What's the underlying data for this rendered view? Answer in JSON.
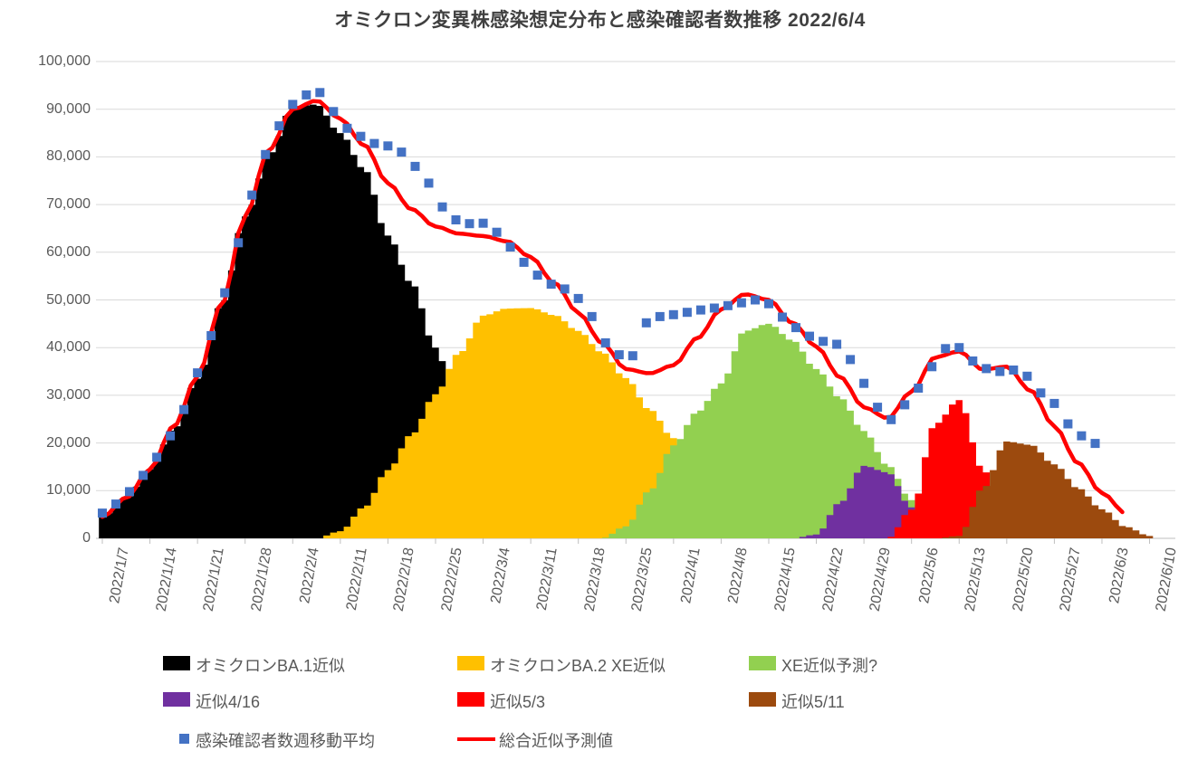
{
  "page": {
    "background": "#FFFFFF"
  },
  "chart_data": {
    "type": "combo-area-scatter-line",
    "title": "オミクロン変異株感染想定分布と感染確認者数推移  2022/6/4",
    "title_color": "#404040",
    "grid": "horizontal",
    "legend_position": "bottom",
    "y_axis": {
      "min": 0,
      "max": 100000,
      "step": 10000,
      "tick_labels": [
        "0",
        "10,000",
        "20,000",
        "30,000",
        "40,000",
        "50,000",
        "60,000",
        "70,000",
        "80,000",
        "90,000",
        "100,000"
      ]
    },
    "x_axis": {
      "start_date": "2022/1/7",
      "tick_interval_days": 7,
      "tick_labels": [
        "2022/1/7",
        "2022/1/14",
        "2022/1/21",
        "2022/1/28",
        "2022/2/4",
        "2022/2/11",
        "2022/2/18",
        "2022/2/25",
        "2022/3/4",
        "2022/3/11",
        "2022/3/18",
        "2022/3/25",
        "2022/4/1",
        "2022/4/8",
        "2022/4/15",
        "2022/4/22",
        "2022/4/29",
        "2022/5/6",
        "2022/5/13",
        "2022/5/20",
        "2022/5/27",
        "2022/6/3",
        "2022/6/10"
      ]
    },
    "area_node_step_days": 3.5,
    "area_series": [
      {
        "name": "オミクロンBA.1近似",
        "color": "#000000",
        "values": [
          4500,
          8500,
          14500,
          23000,
          33500,
          49000,
          67500,
          80500,
          90500,
          91000,
          85000,
          77500,
          63500,
          53500,
          40000,
          25000,
          13000,
          6500,
          3000,
          1200,
          0,
          0,
          0,
          0,
          0,
          0,
          0,
          0,
          0,
          0,
          0,
          0,
          0,
          0,
          0,
          0,
          0,
          0,
          0,
          0,
          0,
          0,
          0,
          0,
          0
        ]
      },
      {
        "name": "オミクロンBA.2 XE近似",
        "color": "#FFC000",
        "values": [
          0,
          0,
          0,
          0,
          0,
          0,
          0,
          0,
          0,
          0,
          1500,
          6500,
          14300,
          21800,
          30200,
          38900,
          46700,
          48200,
          48300,
          46800,
          43500,
          39000,
          33600,
          27000,
          21000,
          14000,
          7000,
          2000,
          0,
          0,
          0,
          0,
          0,
          0,
          0,
          0,
          0,
          0,
          0,
          0,
          0,
          0,
          0,
          0,
          0
        ]
      },
      {
        "name": "XE近似予測?",
        "color": "#92D050",
        "values": [
          0,
          0,
          0,
          0,
          0,
          0,
          0,
          0,
          0,
          0,
          0,
          0,
          0,
          0,
          0,
          0,
          0,
          0,
          0,
          0,
          0,
          0,
          2500,
          10000,
          19500,
          26500,
          32500,
          43500,
          45000,
          41500,
          35500,
          29500,
          22500,
          15300,
          8000,
          2500,
          0,
          0,
          0,
          0,
          0,
          0,
          0,
          0,
          0
        ]
      },
      {
        "name": "近似4/16",
        "color": "#7030A0",
        "values": [
          0,
          0,
          0,
          0,
          0,
          0,
          0,
          0,
          0,
          0,
          0,
          0,
          0,
          0,
          0,
          0,
          0,
          0,
          0,
          0,
          0,
          0,
          0,
          0,
          0,
          0,
          0,
          0,
          0,
          0,
          800,
          7500,
          15200,
          13800,
          6500,
          1200,
          0,
          0,
          0,
          0,
          0,
          0,
          0,
          0,
          0
        ]
      },
      {
        "name": "近似5/3",
        "color": "#FF0000",
        "values": [
          0,
          0,
          0,
          0,
          0,
          0,
          0,
          0,
          0,
          0,
          0,
          0,
          0,
          0,
          0,
          0,
          0,
          0,
          0,
          0,
          0,
          0,
          0,
          0,
          0,
          0,
          0,
          0,
          0,
          0,
          0,
          0,
          0,
          0,
          6000,
          24000,
          29000,
          14500,
          1000,
          0,
          0,
          0,
          0,
          0,
          0
        ]
      },
      {
        "name": "近似5/11",
        "color": "#9C4A0E",
        "values": [
          0,
          0,
          0,
          0,
          0,
          0,
          0,
          0,
          0,
          0,
          0,
          0,
          0,
          0,
          0,
          0,
          0,
          0,
          0,
          0,
          0,
          0,
          0,
          0,
          0,
          0,
          0,
          0,
          0,
          0,
          0,
          0,
          0,
          0,
          0,
          0,
          500,
          10500,
          20300,
          19600,
          15500,
          10500,
          6100,
          2400,
          500
        ]
      }
    ],
    "scatter_series": {
      "name": "感染確認者数週移動平均",
      "color": "#4472C4",
      "marker": "square",
      "point_step_days": 2,
      "values": [
        5300,
        7200,
        9800,
        13200,
        17000,
        21500,
        27000,
        34700,
        42500,
        51500,
        62000,
        72000,
        80500,
        86500,
        91000,
        93000,
        93500,
        89500,
        86000,
        84300,
        82800,
        82300,
        81000,
        78000,
        74500,
        69500,
        66800,
        66000,
        66100,
        64200,
        61100,
        57900,
        55200,
        53300,
        52300,
        50300,
        46500,
        41000,
        38500,
        38300,
        45200,
        46500,
        46900,
        47400,
        47900,
        48300,
        48800,
        49400,
        50000,
        49200,
        46400,
        44200,
        42400,
        41300,
        40700,
        37500,
        32500,
        27500,
        24900,
        28000,
        31500,
        36000,
        39800,
        40000,
        37200,
        35600,
        35000,
        35300,
        34000,
        30500,
        28300,
        24000,
        21500,
        19900
      ]
    },
    "line_series": {
      "name": "総合近似予測値",
      "color": "#FF0000",
      "values": [
        4500,
        8500,
        14500,
        23500,
        34000,
        49000,
        67500,
        81500,
        90000,
        91800,
        88000,
        82500,
        74500,
        69000,
        65400,
        63900,
        63400,
        62300,
        59000,
        53500,
        47300,
        41000,
        35500,
        34600,
        36300,
        42000,
        48000,
        51200,
        50000,
        45200,
        40200,
        33800,
        27500,
        25200,
        30800,
        38000,
        39200,
        35400,
        36000,
        31000,
        23500,
        15800,
        9500,
        5300,
        null
      ]
    },
    "legend": {
      "rows": [
        {
          "items": [
            {
              "kind": "swatch",
              "label": "オミクロンBA.1近似",
              "color": "#000000"
            },
            {
              "kind": "swatch",
              "label": "オミクロンBA.2 XE近似",
              "color": "#FFC000"
            },
            {
              "kind": "swatch",
              "label": "XE近似予測?",
              "color": "#92D050"
            }
          ]
        },
        {
          "items": [
            {
              "kind": "swatch",
              "label": "近似4/16",
              "color": "#7030A0"
            },
            {
              "kind": "swatch",
              "label": "近似5/3",
              "color": "#FF0000"
            },
            {
              "kind": "swatch",
              "label": "近似5/11",
              "color": "#9C4A0E"
            }
          ]
        },
        {
          "items": [
            {
              "kind": "marker",
              "label": "感染確認者数週移動平均",
              "color": "#4472C4"
            },
            {
              "kind": "line",
              "label": "総合近似予測値",
              "color": "#FF0000"
            }
          ]
        }
      ]
    },
    "style": {
      "gridline_color": "#D9D9D9",
      "axis_line_color": "#BFBFBF",
      "tick_text_color": "#595959"
    }
  }
}
